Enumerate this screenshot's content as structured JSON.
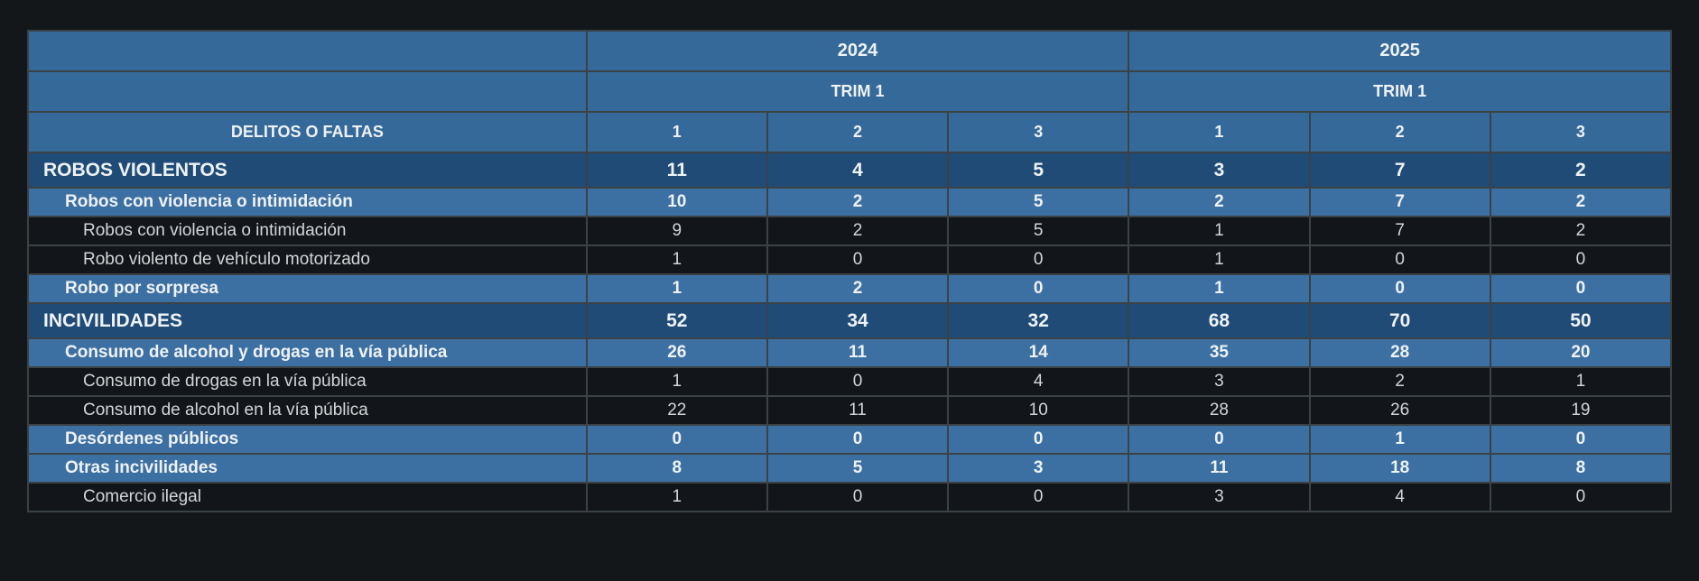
{
  "chart_data": {
    "type": "table",
    "corner_label": "DELITOS O FALTAS",
    "year_headers": [
      "2024",
      "2025"
    ],
    "trim_headers": [
      "TRIM 1",
      "TRIM 1"
    ],
    "period_cols": [
      "1",
      "2",
      "3",
      "1",
      "2",
      "3"
    ],
    "rows": [
      {
        "label": "ROBOS VIOLENTOS",
        "level": 1,
        "values": [
          "11",
          "4",
          "5",
          "3",
          "7",
          "2"
        ]
      },
      {
        "label": "Robos con violencia o intimidación",
        "level": 2,
        "values": [
          "10",
          "2",
          "5",
          "2",
          "7",
          "2"
        ]
      },
      {
        "label": "Robos con violencia o intimidación",
        "level": 3,
        "values": [
          "9",
          "2",
          "5",
          "1",
          "7",
          "2"
        ]
      },
      {
        "label": "Robo violento de vehículo motorizado",
        "level": 3,
        "values": [
          "1",
          "0",
          "0",
          "1",
          "0",
          "0"
        ]
      },
      {
        "label": "Robo por sorpresa",
        "level": 2,
        "values": [
          "1",
          "2",
          "0",
          "1",
          "0",
          "0"
        ]
      },
      {
        "label": "INCIVILIDADES",
        "level": 1,
        "values": [
          "52",
          "34",
          "32",
          "68",
          "70",
          "50"
        ]
      },
      {
        "label": "Consumo de alcohol y drogas en la vía pública",
        "level": 2,
        "values": [
          "26",
          "11",
          "14",
          "35",
          "28",
          "20"
        ]
      },
      {
        "label": "Consumo de drogas en la vía pública",
        "level": 3,
        "values": [
          "1",
          "0",
          "4",
          "3",
          "2",
          "1"
        ]
      },
      {
        "label": "Consumo de alcohol en la vía pública",
        "level": 3,
        "values": [
          "22",
          "11",
          "10",
          "28",
          "26",
          "19"
        ]
      },
      {
        "label": "Desórdenes públicos",
        "level": 2,
        "values": [
          "0",
          "0",
          "0",
          "0",
          "1",
          "0"
        ]
      },
      {
        "label": "Otras incivilidades",
        "level": 2,
        "values": [
          "8",
          "5",
          "3",
          "11",
          "18",
          "8"
        ]
      },
      {
        "label": "Comercio ilegal",
        "level": 3,
        "values": [
          "1",
          "0",
          "0",
          "3",
          "4",
          "0"
        ]
      }
    ],
    "layout": {
      "grid": "on",
      "legend": "none"
    }
  },
  "colors": {
    "page_background": "#131719",
    "header_blue": "#35699a",
    "level1_navy": "#1f4b76",
    "level2_blue": "#3d70a2",
    "level3_dark": "#12161a",
    "border_gray": "#3b4245",
    "text_light": "#eef2f5",
    "text_gray": "#d3d6d8"
  }
}
